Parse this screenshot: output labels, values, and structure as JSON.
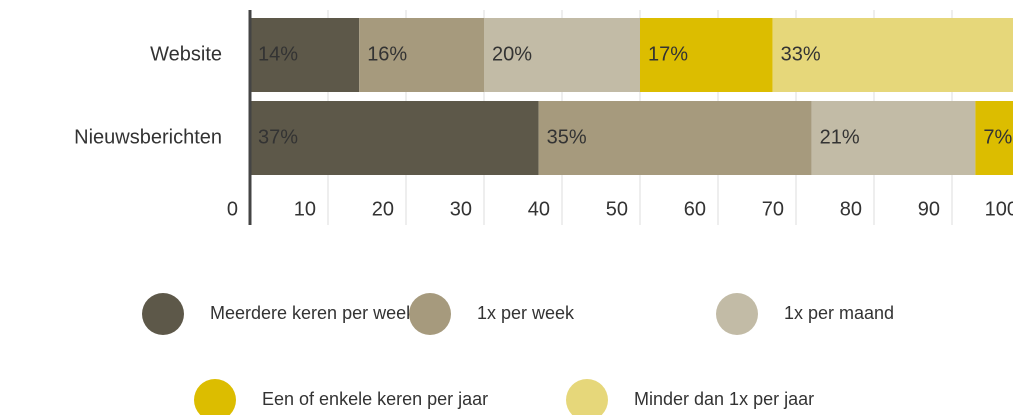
{
  "chart_data": {
    "type": "bar",
    "orientation": "horizontal",
    "stacked": true,
    "categories": [
      "Website",
      "Nieuwsberichten"
    ],
    "series": [
      {
        "name": "Meerdere keren per week",
        "color": "#5d5849",
        "values": [
          14,
          37
        ],
        "value_labels": [
          "14%",
          "37%"
        ]
      },
      {
        "name": "1x per week",
        "color": "#a69a7d",
        "values": [
          16,
          35
        ],
        "value_labels": [
          "16%",
          "35%"
        ]
      },
      {
        "name": "1x per maand",
        "color": "#c2bba6",
        "values": [
          20,
          21
        ],
        "value_labels": [
          "20%",
          "21%"
        ]
      },
      {
        "name": "Een of enkele keren per jaar",
        "color": "#dcbd00",
        "values": [
          17,
          7
        ],
        "value_labels": [
          "17%",
          "7%"
        ]
      },
      {
        "name": "Minder dan 1x per jaar",
        "color": "#e6d77a",
        "values": [
          33,
          0
        ],
        "value_labels": [
          "33%",
          null
        ]
      }
    ],
    "xlim": [
      0,
      100
    ],
    "xticks": [
      0,
      10,
      20,
      30,
      40,
      50,
      60,
      70,
      80,
      90,
      100
    ],
    "grid": true,
    "legend": "bottom"
  }
}
